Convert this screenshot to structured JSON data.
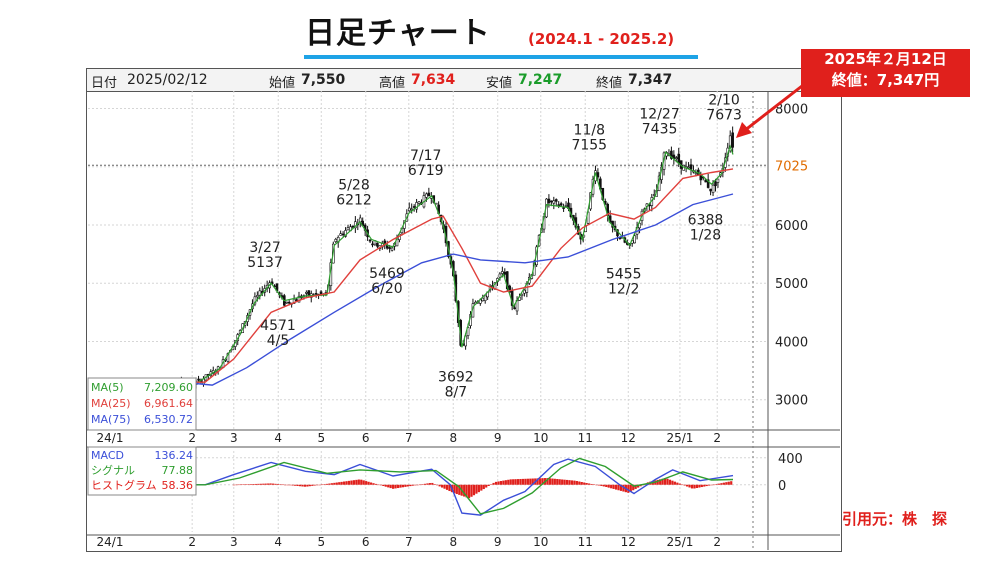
{
  "header": {
    "title": "日足チャート",
    "period": "(2024.1 - 2025.2)"
  },
  "info_bar": {
    "date_label": "日付",
    "date": "2025/02/12",
    "open_label": "始値",
    "open": "7,550",
    "high_label": "高値",
    "high": "7,634",
    "low_label": "安値",
    "low": "7,247",
    "close_label": "終値",
    "close": "7,347"
  },
  "callout": {
    "line1": "2025年２月12日",
    "line2": "終値：7,347円"
  },
  "source": "引用元：株　探",
  "ma_legend": [
    {
      "label": "MA(5)",
      "value": "7,209.60",
      "color": "#2f9e2f"
    },
    {
      "label": "MA(25)",
      "value": "6,961.64",
      "color": "#e0403c"
    },
    {
      "label": "MA(75)",
      "value": "6,530.72",
      "color": "#3b4fd8"
    }
  ],
  "macd_legend": [
    {
      "label": "MACD",
      "value": "136.24",
      "color": "#3b4fd8"
    },
    {
      "label": "シグナル",
      "value": "77.88",
      "color": "#2f9e2f"
    },
    {
      "label": "ヒストグラム",
      "value": "58.36",
      "color": "#e0201c"
    }
  ],
  "colors": {
    "candle": "#111111",
    "ma5": "#2f9e2f",
    "ma25": "#e0403c",
    "ma75": "#3b4fd8",
    "hist": "#e0201c",
    "current_price": "#e06c00",
    "accent": "#e0201c",
    "underline": "#1ea3e6"
  },
  "chart_data": [
    {
      "type": "candlestick",
      "title": "日足チャート",
      "subtitle": "(2024.1 - 2025.2)",
      "x_tick_labels": [
        "24/1",
        "2",
        "3",
        "4",
        "5",
        "6",
        "7",
        "8",
        "9",
        "10",
        "11",
        "12",
        "25/1",
        "2"
      ],
      "y_ticks": [
        3000,
        4000,
        5000,
        6000,
        7000,
        8000
      ],
      "y_tick_labels": [
        "3000",
        "4000",
        "5000",
        "6000",
        "",
        "8000"
      ],
      "ylim": [
        2480,
        8300
      ],
      "current_price": {
        "value": 7025,
        "label": "7025"
      },
      "grid": true,
      "legend": "bottom-left",
      "annotations": [
        {
          "date": "2024-03-27",
          "value": 5137,
          "label_date": "3/27",
          "label_value": "5137",
          "type": "high"
        },
        {
          "date": "2024-04-05",
          "value": 4571,
          "label_date": "4/5",
          "label_value": "4571",
          "type": "low"
        },
        {
          "date": "2024-05-28",
          "value": 6212,
          "label_date": "5/28",
          "label_value": "6212",
          "type": "high"
        },
        {
          "date": "2024-06-20",
          "value": 5469,
          "label_date": "6/20",
          "label_value": "5469",
          "type": "low"
        },
        {
          "date": "2024-07-17",
          "value": 6719,
          "label_date": "7/17",
          "label_value": "6719",
          "type": "high"
        },
        {
          "date": "2024-08-07",
          "value": 3692,
          "label_date": "8/7",
          "label_value": "3692",
          "type": "low"
        },
        {
          "date": "2024-11-08",
          "value": 7155,
          "label_date": "11/8",
          "label_value": "7155",
          "type": "high"
        },
        {
          "date": "2024-12-02",
          "value": 5455,
          "label_date": "12/2",
          "label_value": "5455",
          "type": "low"
        },
        {
          "date": "2024-12-27",
          "value": 7435,
          "label_date": "12/27",
          "label_value": "7435",
          "type": "high"
        },
        {
          "date": "2025-01-28",
          "value": 6388,
          "label_date": "1/28",
          "label_value": "6388",
          "type": "low"
        },
        {
          "date": "2025-02-10",
          "value": 7673,
          "label_date": "2/10",
          "label_value": "7673",
          "type": "high"
        }
      ],
      "price_path": [
        [
          "2024-01-04",
          3300
        ],
        [
          "2024-02-05",
          3300
        ],
        [
          "2024-02-20",
          3550
        ],
        [
          "2024-03-05",
          4150
        ],
        [
          "2024-03-15",
          4700
        ],
        [
          "2024-03-27",
          5050
        ],
        [
          "2024-04-05",
          4650
        ],
        [
          "2024-04-20",
          4800
        ],
        [
          "2024-05-05",
          4800
        ],
        [
          "2024-05-10",
          5750
        ],
        [
          "2024-05-28",
          6100
        ],
        [
          "2024-06-05",
          5700
        ],
        [
          "2024-06-20",
          5600
        ],
        [
          "2024-07-01",
          6250
        ],
        [
          "2024-07-17",
          6550
        ],
        [
          "2024-07-25",
          5950
        ],
        [
          "2024-08-01",
          5100
        ],
        [
          "2024-08-07",
          3800
        ],
        [
          "2024-08-15",
          4650
        ],
        [
          "2024-08-25",
          4850
        ],
        [
          "2024-09-05",
          5200
        ],
        [
          "2024-09-12",
          4550
        ],
        [
          "2024-09-25",
          5200
        ],
        [
          "2024-10-05",
          6400
        ],
        [
          "2024-10-20",
          6300
        ],
        [
          "2024-10-30",
          5700
        ],
        [
          "2024-11-08",
          7000
        ],
        [
          "2024-11-18",
          6000
        ],
        [
          "2024-12-02",
          5600
        ],
        [
          "2024-12-12",
          6300
        ],
        [
          "2024-12-20",
          6500
        ],
        [
          "2024-12-27",
          7300
        ],
        [
          "2025-01-08",
          7000
        ],
        [
          "2025-01-20",
          6850
        ],
        [
          "2025-01-28",
          6600
        ],
        [
          "2025-02-04",
          6900
        ],
        [
          "2025-02-10",
          7550
        ],
        [
          "2025-02-12",
          7347
        ]
      ],
      "series": [
        {
          "name": "MA(5)",
          "last": 7209.6,
          "values": [
            [
              "2024-01-04",
              3300
            ],
            [
              "2024-02-05",
              3300
            ],
            [
              "2024-02-20",
              3530
            ],
            [
              "2024-03-05",
              4100
            ],
            [
              "2024-03-15",
              4650
            ],
            [
              "2024-03-27",
              5000
            ],
            [
              "2024-04-05",
              4700
            ],
            [
              "2024-04-20",
              4780
            ],
            [
              "2024-05-05",
              4800
            ],
            [
              "2024-05-10",
              5650
            ],
            [
              "2024-05-28",
              6050
            ],
            [
              "2024-06-05",
              5750
            ],
            [
              "2024-06-20",
              5620
            ],
            [
              "2024-07-01",
              6200
            ],
            [
              "2024-07-17",
              6500
            ],
            [
              "2024-07-25",
              6000
            ],
            [
              "2024-08-01",
              5200
            ],
            [
              "2024-08-07",
              3900
            ],
            [
              "2024-08-15",
              4600
            ],
            [
              "2024-08-25",
              4850
            ],
            [
              "2024-09-05",
              5150
            ],
            [
              "2024-09-12",
              4600
            ],
            [
              "2024-09-25",
              5150
            ],
            [
              "2024-10-05",
              6350
            ],
            [
              "2024-10-20",
              6300
            ],
            [
              "2024-10-30",
              5750
            ],
            [
              "2024-11-08",
              6900
            ],
            [
              "2024-11-18",
              6050
            ],
            [
              "2024-12-02",
              5650
            ],
            [
              "2024-12-12",
              6250
            ],
            [
              "2024-12-20",
              6500
            ],
            [
              "2024-12-27",
              7250
            ],
            [
              "2025-01-08",
              7000
            ],
            [
              "2025-01-20",
              6880
            ],
            [
              "2025-01-28",
              6700
            ],
            [
              "2025-02-04",
              6880
            ],
            [
              "2025-02-10",
              7350
            ],
            [
              "2025-02-12",
              7210
            ]
          ]
        },
        {
          "name": "MA(25)",
          "last": 6961.64,
          "values": [
            [
              "2024-01-04",
              3300
            ],
            [
              "2024-02-10",
              3300
            ],
            [
              "2024-03-01",
              3700
            ],
            [
              "2024-03-27",
              4500
            ],
            [
              "2024-04-20",
              4750
            ],
            [
              "2024-05-10",
              4850
            ],
            [
              "2024-05-28",
              5400
            ],
            [
              "2024-06-20",
              5750
            ],
            [
              "2024-07-17",
              6100
            ],
            [
              "2024-07-25",
              6150
            ],
            [
              "2024-08-07",
              5600
            ],
            [
              "2024-08-20",
              5000
            ],
            [
              "2024-09-05",
              4850
            ],
            [
              "2024-09-25",
              4950
            ],
            [
              "2024-10-15",
              5600
            ],
            [
              "2024-10-30",
              5950
            ],
            [
              "2024-11-18",
              6200
            ],
            [
              "2024-12-05",
              6100
            ],
            [
              "2024-12-20",
              6300
            ],
            [
              "2025-01-08",
              6800
            ],
            [
              "2025-01-28",
              6900
            ],
            [
              "2025-02-12",
              6962
            ]
          ]
        },
        {
          "name": "MA(75)",
          "last": 6530.72,
          "values": [
            [
              "2024-01-04",
              3350
            ],
            [
              "2024-02-15",
              3250
            ],
            [
              "2024-03-10",
              3550
            ],
            [
              "2024-04-10",
              4050
            ],
            [
              "2024-05-10",
              4500
            ],
            [
              "2024-06-10",
              4950
            ],
            [
              "2024-07-10",
              5350
            ],
            [
              "2024-08-01",
              5500
            ],
            [
              "2024-08-20",
              5400
            ],
            [
              "2024-09-20",
              5350
            ],
            [
              "2024-10-20",
              5450
            ],
            [
              "2024-11-20",
              5750
            ],
            [
              "2024-12-20",
              6000
            ],
            [
              "2025-01-15",
              6350
            ],
            [
              "2025-02-12",
              6531
            ]
          ]
        }
      ]
    },
    {
      "type": "line",
      "title": "MACD",
      "x_tick_labels": [
        "24/1",
        "2",
        "3",
        "4",
        "5",
        "6",
        "7",
        "8",
        "9",
        "10",
        "11",
        "12",
        "25/1",
        "2"
      ],
      "y_ticks": [
        400,
        0
      ],
      "y_tick_labels": [
        "400",
        "0"
      ],
      "ylim": [
        -700,
        500
      ],
      "series": [
        {
          "name": "MACD",
          "last": 136.24,
          "values": [
            [
              "2024-01-04",
              0
            ],
            [
              "2024-02-10",
              0
            ],
            [
              "2024-03-01",
              150
            ],
            [
              "2024-03-27",
              330
            ],
            [
              "2024-04-20",
              200
            ],
            [
              "2024-05-10",
              150
            ],
            [
              "2024-05-28",
              300
            ],
            [
              "2024-06-20",
              130
            ],
            [
              "2024-07-17",
              230
            ],
            [
              "2024-07-30",
              0
            ],
            [
              "2024-08-07",
              -420
            ],
            [
              "2024-08-20",
              -450
            ],
            [
              "2024-09-05",
              -230
            ],
            [
              "2024-09-20",
              -100
            ],
            [
              "2024-10-10",
              300
            ],
            [
              "2024-10-20",
              380
            ],
            [
              "2024-11-08",
              270
            ],
            [
              "2024-11-25",
              0
            ],
            [
              "2024-12-05",
              -130
            ],
            [
              "2024-12-20",
              80
            ],
            [
              "2025-01-01",
              220
            ],
            [
              "2025-01-20",
              60
            ],
            [
              "2025-02-12",
              136
            ]
          ]
        },
        {
          "name": "シグナル",
          "last": 77.88,
          "values": [
            [
              "2024-01-04",
              0
            ],
            [
              "2024-02-10",
              0
            ],
            [
              "2024-03-05",
              100
            ],
            [
              "2024-04-05",
              330
            ],
            [
              "2024-05-05",
              170
            ],
            [
              "2024-05-28",
              220
            ],
            [
              "2024-06-25",
              190
            ],
            [
              "2024-07-20",
              210
            ],
            [
              "2024-08-05",
              -30
            ],
            [
              "2024-08-20",
              -430
            ],
            [
              "2024-09-05",
              -350
            ],
            [
              "2024-09-25",
              -120
            ],
            [
              "2024-10-15",
              250
            ],
            [
              "2024-10-28",
              390
            ],
            [
              "2024-11-15",
              270
            ],
            [
              "2024-12-05",
              -20
            ],
            [
              "2024-12-20",
              40
            ],
            [
              "2025-01-08",
              190
            ],
            [
              "2025-01-28",
              70
            ],
            [
              "2025-02-12",
              78
            ]
          ]
        },
        {
          "name": "ヒストグラム",
          "last": 58.36,
          "values": [
            [
              "2024-03-01",
              0
            ],
            [
              "2024-03-27",
              20
            ],
            [
              "2024-04-20",
              -30
            ],
            [
              "2024-05-28",
              80
            ],
            [
              "2024-06-20",
              -60
            ],
            [
              "2024-07-17",
              30
            ],
            [
              "2024-08-01",
              -120
            ],
            [
              "2024-08-12",
              -200
            ],
            [
              "2024-08-30",
              40
            ],
            [
              "2024-09-10",
              80
            ],
            [
              "2024-10-05",
              100
            ],
            [
              "2024-10-25",
              60
            ],
            [
              "2024-11-15",
              -30
            ],
            [
              "2024-12-01",
              -120
            ],
            [
              "2024-12-15",
              40
            ],
            [
              "2024-12-27",
              100
            ],
            [
              "2025-01-15",
              -60
            ],
            [
              "2025-02-12",
              58
            ]
          ]
        }
      ]
    }
  ]
}
